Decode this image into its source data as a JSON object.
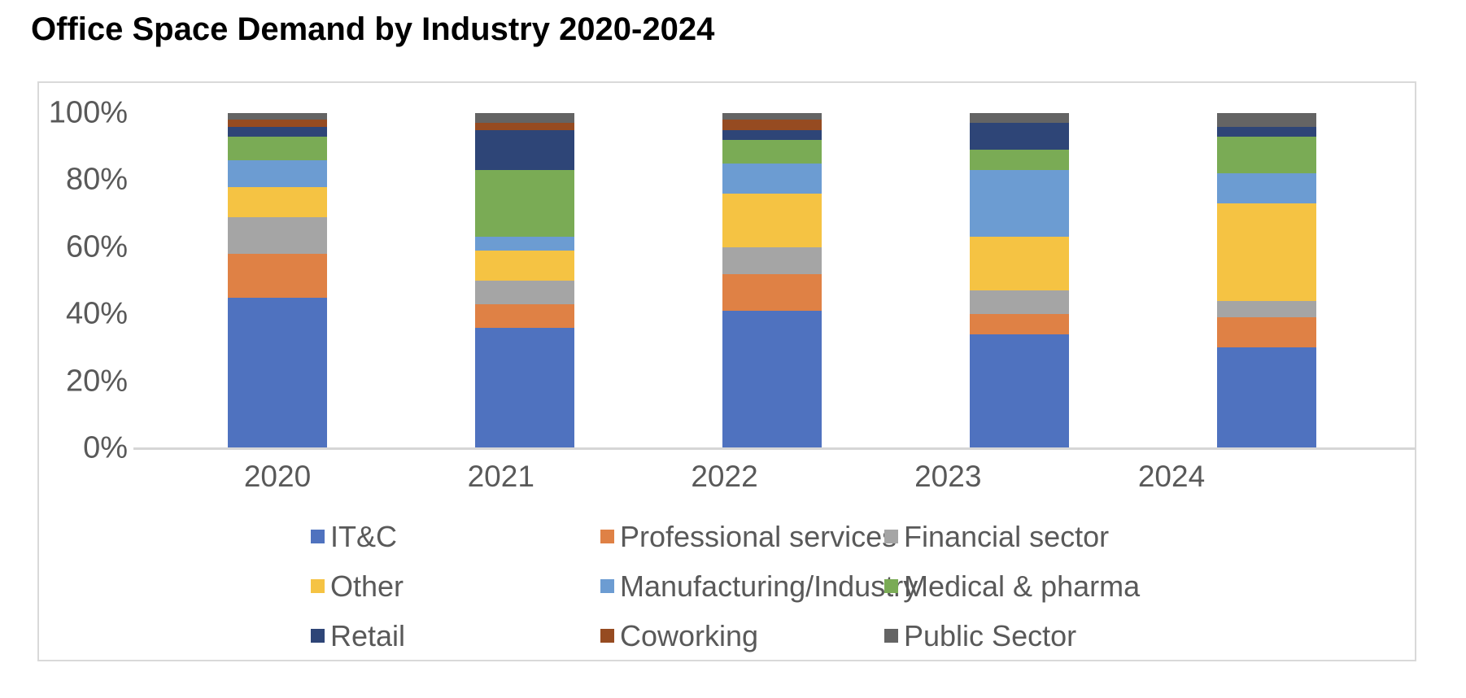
{
  "page": {
    "title": "Office Space Demand by Industry 2020-2024"
  },
  "chart_data": {
    "type": "bar",
    "subtype": "stacked-100-percent-column",
    "title": "Office Space Demand by Industry 2020-2024",
    "categories": [
      "2020",
      "2021",
      "2022",
      "2023",
      "2024"
    ],
    "series": [
      {
        "name": "IT&C",
        "color": "#4F72BF",
        "values": [
          45,
          36,
          41,
          34,
          30
        ]
      },
      {
        "name": "Professional services",
        "color": "#DF8145",
        "values": [
          13,
          7,
          11,
          6,
          9
        ]
      },
      {
        "name": "Financial sector",
        "color": "#A5A5A5",
        "values": [
          11,
          7,
          8,
          7,
          5
        ]
      },
      {
        "name": "Other",
        "color": "#F5C343",
        "values": [
          9,
          9,
          16,
          16,
          29
        ]
      },
      {
        "name": "Manufacturing/Industry",
        "color": "#6C9CD2",
        "values": [
          8,
          4,
          9,
          20,
          9
        ]
      },
      {
        "name": "Medical & pharma",
        "color": "#7AAB55",
        "values": [
          7,
          20,
          7,
          6,
          11
        ]
      },
      {
        "name": "Retail",
        "color": "#2E4577",
        "values": [
          3,
          12,
          3,
          8,
          3
        ]
      },
      {
        "name": "Coworking",
        "color": "#964B21",
        "values": [
          2,
          2,
          3,
          0,
          0
        ]
      },
      {
        "name": "Public Sector",
        "color": "#646464",
        "values": [
          2,
          3,
          2,
          3,
          4
        ]
      }
    ],
    "y_ticks": [
      "100%",
      "80%",
      "60%",
      "40%",
      "20%",
      "0%"
    ],
    "ylim": [
      0,
      100
    ],
    "yunit": "percent",
    "grid": false,
    "stack_order": "first-series-at-bottom",
    "legend_position": "bottom",
    "legend_columns": 3,
    "axis_line_color": "#D6D6D6",
    "chart_border_color": "#D9D9D9",
    "label_color": "#595959"
  }
}
